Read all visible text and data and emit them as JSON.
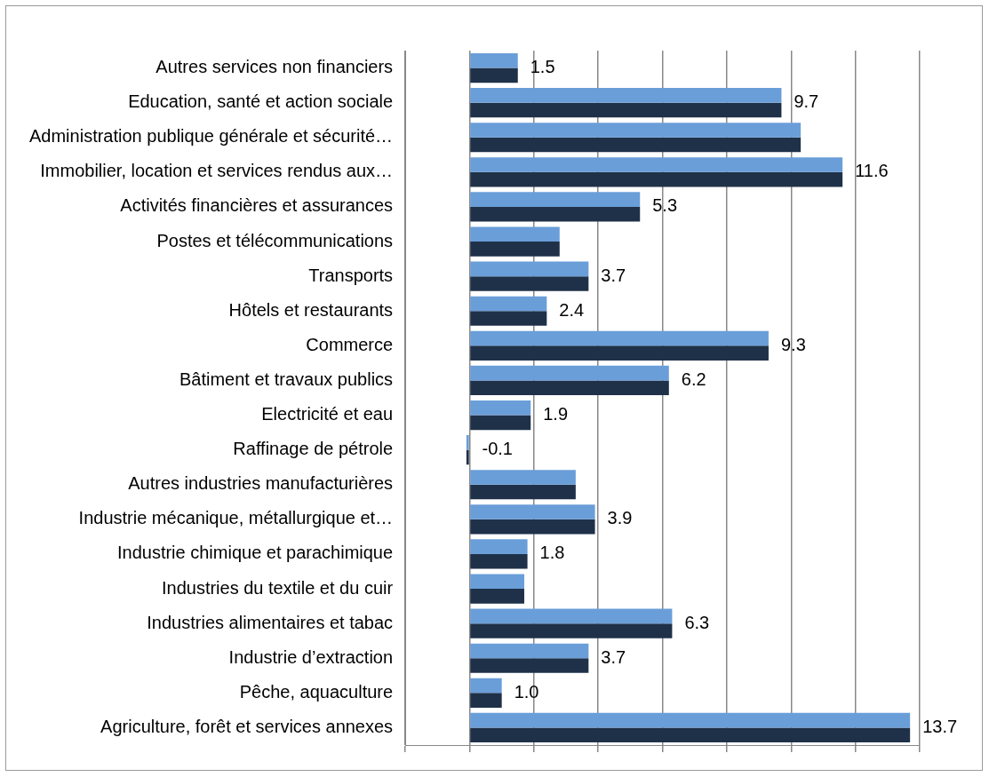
{
  "chart_data": {
    "type": "bar",
    "orientation": "horizontal",
    "categories": [
      "Autres services non financiers",
      "Education, santé et action sociale",
      "Administration publique générale et sécurité…",
      "Immobilier, location et services rendus aux…",
      "Activités financières et assurances",
      "Postes et télécommunications",
      "Transports",
      "Hôtels et restaurants",
      "Commerce",
      "Bâtiment et travaux publics",
      "Electricité et eau",
      "Raffinage de pétrole",
      "Autres industries manufacturières",
      "Industrie mécanique, métallurgique et…",
      "Industrie chimique et parachimique",
      "Industries du textile et du cuir",
      "Industries alimentaires et tabac",
      "Industrie d’extraction",
      "Pêche, aquaculture",
      "Agriculture, forêt et services annexes"
    ],
    "series": [
      {
        "color": "#6a9ed9",
        "values": [
          1.5,
          9.7,
          10.3,
          11.6,
          5.3,
          2.8,
          3.7,
          2.4,
          9.3,
          6.2,
          1.9,
          -0.1,
          3.3,
          3.9,
          1.8,
          1.7,
          6.3,
          3.7,
          1.0,
          13.7
        ],
        "value_labels": [
          "1.5",
          "9.7",
          null,
          "11.6",
          "5.3",
          null,
          "3.7",
          "2.4",
          "9.3",
          "6.2",
          "1.9",
          "-0.1",
          null,
          "3.9",
          "1.8",
          null,
          "6.3",
          "3.7",
          "1.0",
          "13.7"
        ]
      },
      {
        "color": "#1f3149",
        "values": [
          1.5,
          9.7,
          10.3,
          11.6,
          5.3,
          2.8,
          3.7,
          2.4,
          9.3,
          6.2,
          1.9,
          -0.1,
          3.3,
          3.9,
          1.8,
          1.7,
          6.3,
          3.7,
          1.0,
          13.7
        ]
      }
    ],
    "xlim": [
      -2,
      14
    ],
    "xticks": [
      {
        "value": -2,
        "label": null
      },
      {
        "value": 0,
        "label": null
      },
      {
        "value": 2,
        "label": null
      },
      {
        "value": 4,
        "label": null
      },
      {
        "value": 6,
        "label": null
      },
      {
        "value": 8,
        "label": null
      },
      {
        "value": 10,
        "label": null
      },
      {
        "value": 12,
        "label": null
      },
      {
        "value": 14,
        "label": null
      }
    ],
    "grid": "x",
    "legend": false,
    "tick_labels": "y"
  }
}
